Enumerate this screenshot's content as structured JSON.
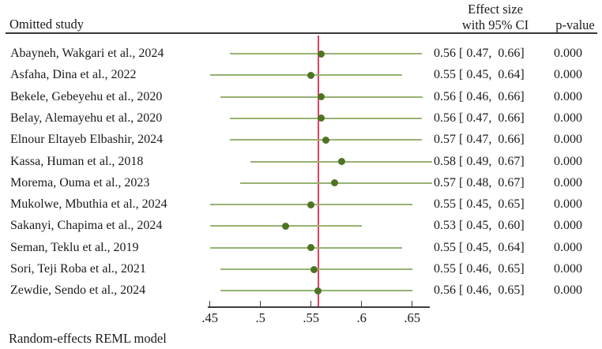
{
  "header": {
    "omitted_study": "Omitted study",
    "effect_size_line1": "Effect size",
    "effect_size_line2": "with 95% CI",
    "p_value": "p-value"
  },
  "footer": {
    "note": "Random-effects REML model"
  },
  "chart_data": {
    "type": "forest",
    "description": "Leave-one-out sensitivity analysis forest plot",
    "xlabel": "",
    "ylabel": "",
    "xlim": [
      0.44,
      0.675
    ],
    "x_tick_labels": [
      ".45",
      ".5",
      ".55",
      ".6",
      ".65"
    ],
    "x_tick_values": [
      0.45,
      0.5,
      0.55,
      0.6,
      0.65
    ],
    "reference_line_value": 0.557,
    "grid": false,
    "colors": {
      "ci_line": "#97b273",
      "marker": "#4e7422",
      "reference_line": "#e23f63",
      "axis": "#3d3d3d",
      "text": "#1a1a1a"
    },
    "studies": [
      {
        "label": "Abayneh, Wakgari et al., 2024",
        "effect": 0.56,
        "ci_low": 0.47,
        "ci_high": 0.66,
        "es_text": "0.56 [ 0.47,  0.66]",
        "p_value": "0.000"
      },
      {
        "label": "Asfaha, Dina et al., 2022",
        "effect": 0.55,
        "ci_low": 0.45,
        "ci_high": 0.64,
        "es_text": "0.55 [ 0.45,  0.64]",
        "p_value": "0.000"
      },
      {
        "label": "Bekele, Gebeyehu et al., 2020",
        "effect": 0.56,
        "ci_low": 0.46,
        "ci_high": 0.66,
        "es_text": "0.56 [ 0.46,  0.66]",
        "p_value": "0.000"
      },
      {
        "label": "Belay, Alemayehu et al., 2020",
        "effect": 0.56,
        "ci_low": 0.47,
        "ci_high": 0.66,
        "es_text": "0.56 [ 0.47,  0.66]",
        "p_value": "0.000"
      },
      {
        "label": "Elnour Eltayeb Elbashir, 2024",
        "effect": 0.565,
        "ci_low": 0.47,
        "ci_high": 0.66,
        "es_text": "0.57 [ 0.47,  0.66]",
        "p_value": "0.000"
      },
      {
        "label": "Kassa, Human et al., 2018",
        "effect": 0.58,
        "ci_low": 0.49,
        "ci_high": 0.67,
        "es_text": "0.58 [ 0.49,  0.67]",
        "p_value": "0.000"
      },
      {
        "label": "Morema, Ouma et al., 2023",
        "effect": 0.573,
        "ci_low": 0.48,
        "ci_high": 0.67,
        "es_text": "0.57 [ 0.48,  0.67]",
        "p_value": "0.000"
      },
      {
        "label": "Mukolwe, Mbuthia et al., 2024",
        "effect": 0.55,
        "ci_low": 0.45,
        "ci_high": 0.65,
        "es_text": "0.55 [ 0.45,  0.65]",
        "p_value": "0.000"
      },
      {
        "label": "Sakanyi, Chapima et al., 2024",
        "effect": 0.525,
        "ci_low": 0.45,
        "ci_high": 0.6,
        "es_text": "0.53 [ 0.45,  0.60]",
        "p_value": "0.000"
      },
      {
        "label": "Seman, Teklu et al., 2019",
        "effect": 0.55,
        "ci_low": 0.45,
        "ci_high": 0.64,
        "es_text": "0.55 [ 0.45,  0.64]",
        "p_value": "0.000"
      },
      {
        "label": "Sori, Teji Roba et al., 2021",
        "effect": 0.553,
        "ci_low": 0.46,
        "ci_high": 0.65,
        "es_text": "0.55 [ 0.46,  0.65]",
        "p_value": "0.000"
      },
      {
        "label": "Zewdie, Sendo et al., 2024",
        "effect": 0.557,
        "ci_low": 0.46,
        "ci_high": 0.65,
        "es_text": "0.56 [ 0.46,  0.65]",
        "p_value": "0.000"
      }
    ]
  }
}
